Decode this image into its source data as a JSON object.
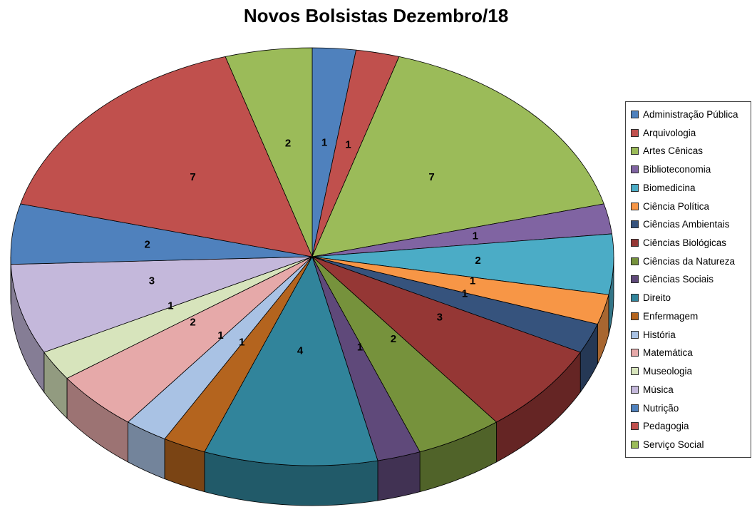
{
  "chart_data": {
    "type": "pie",
    "style": "3d-pie",
    "title": "Novos Bolsistas Dezembro/18",
    "total": 43,
    "legend_position": "right",
    "data_labels": "value",
    "background": "#FFFFFF",
    "slices": [
      {
        "label": "Administração Pública",
        "value": 1,
        "color": "#4F81BD"
      },
      {
        "label": "Arquivologia",
        "value": 1,
        "color": "#C0504D"
      },
      {
        "label": "Artes Cênicas",
        "value": 7,
        "color": "#9BBB59"
      },
      {
        "label": "Biblioteconomia",
        "value": 1,
        "color": "#8064A2"
      },
      {
        "label": "Biomedicina",
        "value": 2,
        "color": "#4BACC6"
      },
      {
        "label": "Ciência Política",
        "value": 1,
        "color": "#F79646"
      },
      {
        "label": "Ciências Ambientais",
        "value": 1,
        "color": "#36537D"
      },
      {
        "label": "Ciências Biológicas",
        "value": 3,
        "color": "#953735"
      },
      {
        "label": "Ciências da Natureza",
        "value": 2,
        "color": "#76923C"
      },
      {
        "label": "Ciências Sociais",
        "value": 1,
        "color": "#5F497A"
      },
      {
        "label": "Direito",
        "value": 4,
        "color": "#31849B"
      },
      {
        "label": "Enfermagem",
        "value": 1,
        "color": "#B4641E"
      },
      {
        "label": "História",
        "value": 1,
        "color": "#A9C2E4"
      },
      {
        "label": "Matemática",
        "value": 2,
        "color": "#E6A9A9"
      },
      {
        "label": "Museologia",
        "value": 1,
        "color": "#D7E4BC"
      },
      {
        "label": "Música",
        "value": 3,
        "color": "#C4B8DB"
      },
      {
        "label": "Nutrição",
        "value": 2,
        "color": "#4F81BD"
      },
      {
        "label": "Pedagogia",
        "value": 7,
        "color": "#C0504D"
      },
      {
        "label": "Serviço Social",
        "value": 2,
        "color": "#9BBB59"
      }
    ]
  }
}
